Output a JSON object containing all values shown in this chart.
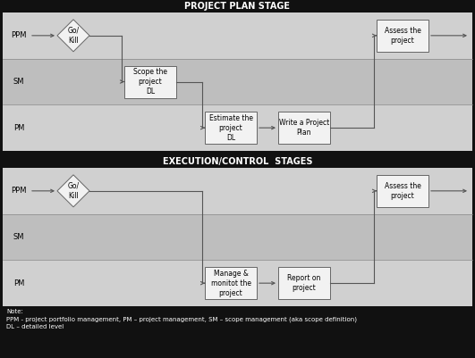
{
  "fig_width": 5.31,
  "fig_height": 4.01,
  "dpi": 100,
  "bg_color": "#111111",
  "header_color": "#111111",
  "header_text_color": "#ffffff",
  "lane_light": "#d0d0d0",
  "lane_dark": "#bebebe",
  "box_fill": "#f2f2f2",
  "box_edge": "#666666",
  "arrow_color": "#555555",
  "text_color": "#000000",
  "section1_title": "PROJECT PLAN STAGE",
  "section2_title": "EXECUTION/CONTROL  STAGES",
  "note_text": "Note:\nPPM - project portfolio management, PM – project management, SM – scope management (aka scope definition)\nDL – detailed level",
  "lanes": [
    "PPM",
    "SM",
    "PM"
  ],
  "s1_go_kill": "Go/\nKill",
  "s1_assess": "Assess the\nproject",
  "s1_scope": "Scope the\nproject\nDL",
  "s1_estimate": "Estimate the\nproject\nDL",
  "s1_write": "Write a Project\nPlan",
  "s2_go_kill": "Go/\nKill",
  "s2_assess": "Assess the\nproject",
  "s2_manage": "Manage &\nmonitot the\nproject",
  "s2_report": "Report on\nproject"
}
